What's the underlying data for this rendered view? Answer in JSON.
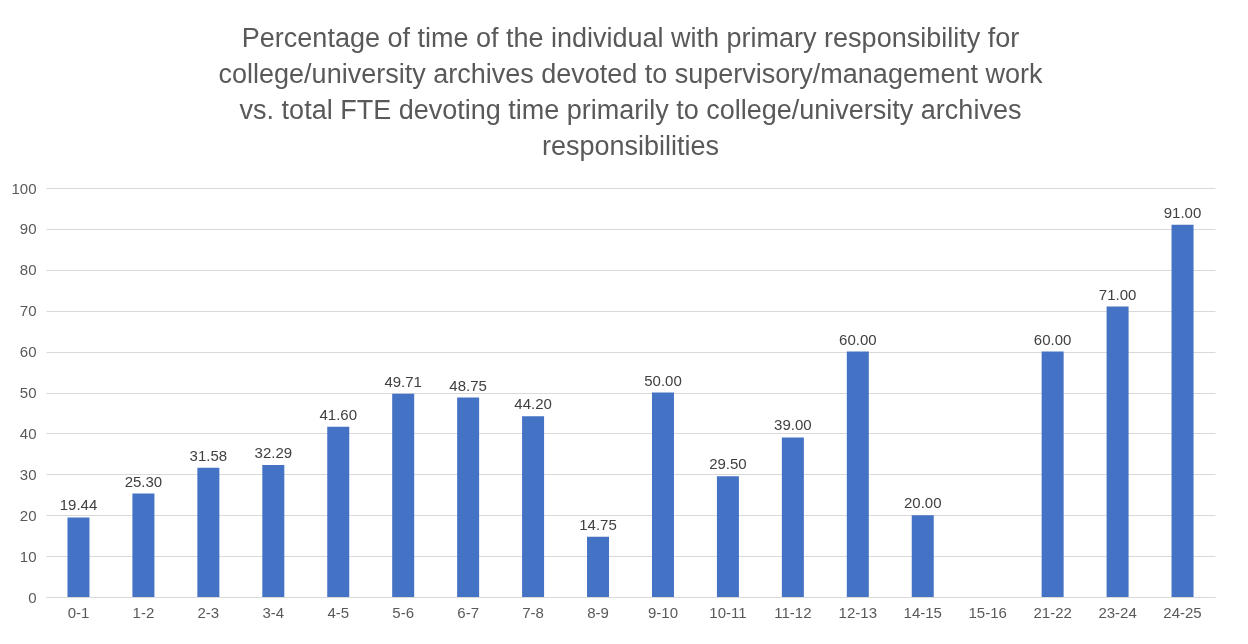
{
  "chart_data": {
    "type": "bar",
    "title": "Percentage of time of the individual with primary responsibility for college/university archives devoted to supervisory/management work vs. total FTE devoting time primarily to college/university archives responsibilities",
    "categories": [
      "0-1",
      "1-2",
      "2-3",
      "3-4",
      "4-5",
      "5-6",
      "6-7",
      "7-8",
      "8-9",
      "9-10",
      "10-11",
      "11-12",
      "12-13",
      "14-15",
      "15-16",
      "21-22",
      "23-24",
      "24-25"
    ],
    "values": [
      19.44,
      25.3,
      31.58,
      32.29,
      41.6,
      49.71,
      48.75,
      44.2,
      14.75,
      50.0,
      29.5,
      39.0,
      60.0,
      20.0,
      null,
      60.0,
      71.0,
      91.0
    ],
    "value_labels": [
      "19.44",
      "25.30",
      "31.58",
      "32.29",
      "41.60",
      "49.71",
      "48.75",
      "44.20",
      "14.75",
      "50.00",
      "29.50",
      "39.00",
      "60.00",
      "20.00",
      null,
      "60.00",
      "71.00",
      "91.00"
    ],
    "color": "#4472c4",
    "ylim": [
      0,
      100
    ],
    "yticks": [
      0,
      10,
      20,
      30,
      40,
      50,
      60,
      70,
      80,
      90,
      100
    ],
    "grid": "y"
  }
}
